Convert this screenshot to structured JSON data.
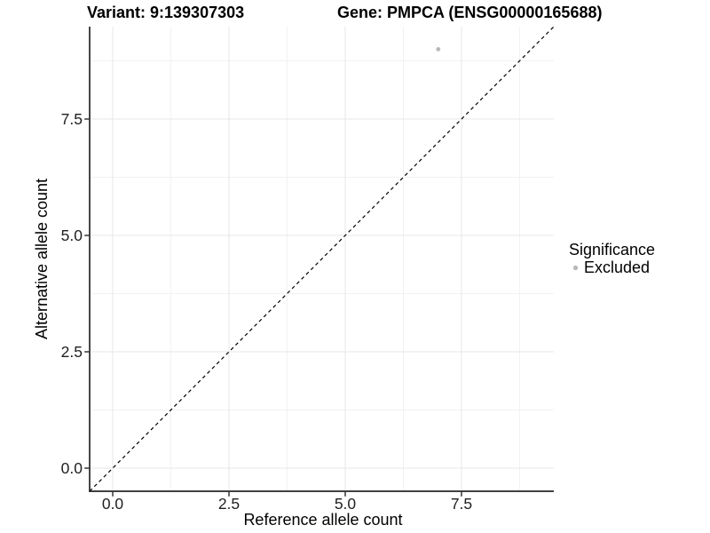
{
  "chart_data": {
    "type": "scatter",
    "titles": {
      "left": "Variant: 9:139307303",
      "right": "Gene: PMPCA (ENSG00000165688)"
    },
    "xlabel": "Reference allele count",
    "ylabel": "Alternative allele count",
    "xlim": [
      -0.5,
      9.5
    ],
    "ylim": [
      -0.5,
      9.5
    ],
    "x_ticks": {
      "values": [
        0.0,
        2.5,
        5.0,
        7.5
      ],
      "labels": [
        "0.0",
        "2.5",
        "5.0",
        "7.5"
      ]
    },
    "y_ticks": {
      "values": [
        0.0,
        2.5,
        5.0,
        7.5
      ],
      "labels": [
        "0.0",
        "2.5",
        "5.0",
        "7.5"
      ]
    },
    "grid": {
      "major": true,
      "minor": true,
      "major_color": "#e7e7e7",
      "minor_color": "#f2f2f2"
    },
    "reference_line": {
      "equation": "y = x",
      "from": [
        -0.5,
        -0.5
      ],
      "to": [
        9.5,
        9.5
      ],
      "style": "dashed",
      "color": "#000000"
    },
    "series": [
      {
        "name": "Excluded",
        "color": "#b9b9b9",
        "points": [
          {
            "x": 7,
            "y": 9
          }
        ]
      }
    ],
    "legend": {
      "title": "Significance",
      "position": "right",
      "items": [
        {
          "label": "Excluded",
          "color": "#b9b9b9",
          "marker": "circle"
        }
      ]
    },
    "colors": {
      "axis_line": "#262626",
      "tick_text": "#1f1f1f",
      "title_text": "#000000"
    }
  }
}
